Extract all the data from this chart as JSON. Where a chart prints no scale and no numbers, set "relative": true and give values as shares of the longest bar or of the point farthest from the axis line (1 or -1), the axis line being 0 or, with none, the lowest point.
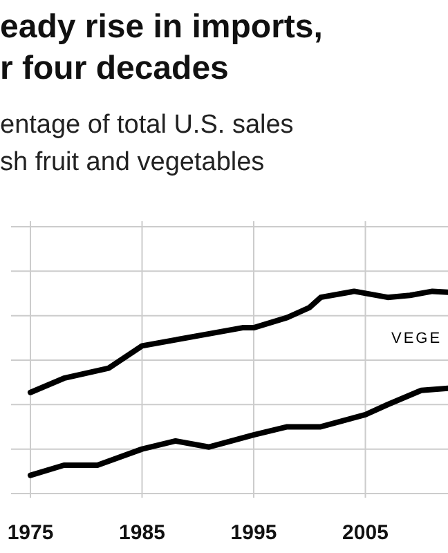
{
  "chart_data": {
    "type": "line",
    "title": "eady rise in imports,\nr four decades",
    "subtitle": "entage of total U.S. sales\nsh fruit and vegetables",
    "relative": true,
    "grid": true,
    "xlim": [
      1975,
      2012.4
    ],
    "xticks": [
      1975,
      1985,
      1995,
      2005
    ],
    "series": [
      {
        "name": "VEGE",
        "color": "#000000",
        "x": [
          1975,
          1978,
          1982,
          1985,
          1988,
          1991,
          1994,
          1995,
          1998,
          2000,
          2001,
          2004,
          2007,
          2009,
          2011,
          2012.4
        ],
        "values": [
          0.5,
          0.57,
          0.62,
          0.73,
          0.76,
          0.79,
          0.82,
          0.82,
          0.87,
          0.92,
          0.97,
          1,
          0.97,
          0.98,
          1,
          0.995
        ]
      },
      {
        "color": "#000000",
        "x": [
          1975,
          1978,
          1981,
          1985,
          1988,
          1991,
          1995,
          1998,
          2001,
          2005,
          2007,
          2010,
          2012.4
        ],
        "values": [
          0.09,
          0.14,
          0.14,
          0.22,
          0.26,
          0.23,
          0.29,
          0.33,
          0.33,
          0.39,
          0.44,
          0.51,
          0.52
        ]
      }
    ]
  }
}
